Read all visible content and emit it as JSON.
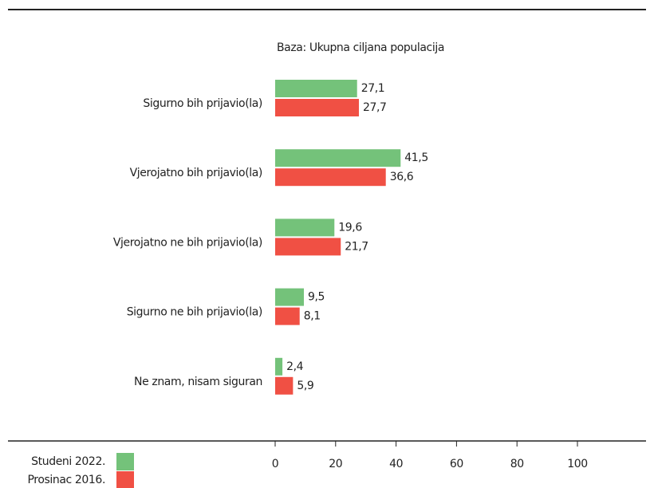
{
  "chart_data": {
    "type": "hbar",
    "subtitle": "Baza: Ukupna ciljana populacija",
    "categories": [
      "Sigurno bih prijavio(la)",
      "Vjerojatno bih prijavio(la)",
      "Vjerojatno ne bih prijavio(la)",
      "Sigurno ne bih prijavio(la)",
      "Ne znam, nisam siguran"
    ],
    "series": [
      {
        "name": "Studeni 2022.",
        "color": "#74c27a",
        "values": [
          27.1,
          41.5,
          19.6,
          9.5,
          2.4
        ],
        "value_labels": [
          "27,1",
          "41,5",
          "19,6",
          "9,5",
          "2,4"
        ]
      },
      {
        "name": "Prosinac 2016.",
        "color": "#f05044",
        "values": [
          27.7,
          36.6,
          21.7,
          8.1,
          5.9
        ],
        "value_labels": [
          "27,7",
          "36,6",
          "21,7",
          "8,1",
          "5,9"
        ]
      }
    ],
    "xlim": [
      0,
      100
    ],
    "xticks": [
      0,
      20,
      40,
      60,
      80,
      100
    ],
    "legend": "bottom-left"
  }
}
